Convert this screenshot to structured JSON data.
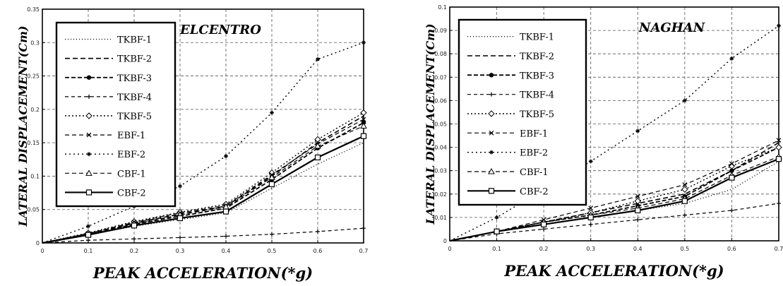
{
  "chart_data": [
    {
      "type": "line",
      "title": "ELCENTRO",
      "xlabel": "PEAK ACCELERATION(*g)",
      "ylabel": "LATERAL DISPLACEMENT(Cm)",
      "xlim": [
        0,
        0.7
      ],
      "ylim": [
        0,
        0.35
      ],
      "x_ticks": [
        "0",
        "0.1",
        "0.2",
        "0.3",
        "0.4",
        "0.5",
        "0.6",
        "0.7"
      ],
      "y_ticks": [
        "0",
        "0.05",
        "0.1",
        "0.15",
        "0.2",
        "0.25",
        "0.3",
        "0.35"
      ],
      "grid": true,
      "legend_position": "top-left",
      "x": [
        0,
        0.1,
        0.2,
        0.3,
        0.4,
        0.5,
        0.6,
        0.7
      ],
      "series": [
        {
          "name": "TKBF-1",
          "values": [
            0,
            0.012,
            0.025,
            0.035,
            0.045,
            0.082,
            0.118,
            0.15
          ]
        },
        {
          "name": "TKBF-2",
          "values": [
            0,
            0.014,
            0.03,
            0.043,
            0.055,
            0.1,
            0.15,
            0.19
          ]
        },
        {
          "name": "TKBF-3",
          "values": [
            0,
            0.013,
            0.028,
            0.04,
            0.052,
            0.095,
            0.142,
            0.18
          ]
        },
        {
          "name": "TKBF-4",
          "values": [
            0,
            0.004,
            0.006,
            0.008,
            0.01,
            0.013,
            0.017,
            0.022
          ]
        },
        {
          "name": "TKBF-5",
          "values": [
            0,
            0.015,
            0.032,
            0.046,
            0.058,
            0.105,
            0.155,
            0.195
          ]
        },
        {
          "name": "EBF-1",
          "values": [
            0,
            0.014,
            0.031,
            0.045,
            0.056,
            0.102,
            0.148,
            0.185
          ]
        },
        {
          "name": "EBF-2",
          "values": [
            0,
            0.025,
            0.055,
            0.085,
            0.13,
            0.195,
            0.275,
            0.3
          ]
        },
        {
          "name": "CBF-1",
          "values": [
            0,
            0.013,
            0.029,
            0.042,
            0.054,
            0.098,
            0.145,
            0.175
          ]
        },
        {
          "name": "CBF-2",
          "values": [
            0,
            0.012,
            0.026,
            0.037,
            0.047,
            0.088,
            0.128,
            0.16
          ]
        }
      ]
    },
    {
      "type": "line",
      "title": "NAGHAN",
      "xlabel": "PEAK ACCELERATION(*g)",
      "ylabel": "LATERAL DISPLACEMENT(Cm)",
      "xlim": [
        0,
        0.7
      ],
      "ylim": [
        0,
        0.1
      ],
      "x_ticks": [
        "0",
        "0.1",
        "0.2",
        "0.3",
        "0.4",
        "0.5",
        "0.6",
        "0.7"
      ],
      "y_ticks": [
        "0",
        "0.01",
        "0.02",
        "0.03",
        "0.04",
        "0.05",
        "0.06",
        "0.07",
        "0.08",
        "0.09",
        "0.1"
      ],
      "grid": true,
      "legend_position": "top-left",
      "x": [
        0,
        0.1,
        0.2,
        0.3,
        0.4,
        0.5,
        0.6,
        0.7
      ],
      "series": [
        {
          "name": "TKBF-1",
          "values": [
            0,
            0.004,
            0.007,
            0.01,
            0.013,
            0.016,
            0.022,
            0.034
          ]
        },
        {
          "name": "TKBF-2",
          "values": [
            0,
            0.004,
            0.008,
            0.012,
            0.016,
            0.02,
            0.03,
            0.042
          ]
        },
        {
          "name": "TKBF-3",
          "values": [
            0,
            0.004,
            0.008,
            0.011,
            0.015,
            0.019,
            0.03,
            0.04
          ]
        },
        {
          "name": "TKBF-4",
          "values": [
            0,
            0.003,
            0.005,
            0.007,
            0.009,
            0.011,
            0.013,
            0.016
          ]
        },
        {
          "name": "TKBF-5",
          "values": [
            0,
            0.004,
            0.008,
            0.012,
            0.017,
            0.022,
            0.032,
            0.04
          ]
        },
        {
          "name": "EBF-1",
          "values": [
            0,
            0.004,
            0.009,
            0.014,
            0.019,
            0.024,
            0.033,
            0.043
          ]
        },
        {
          "name": "EBF-2",
          "values": [
            0,
            0.01,
            0.022,
            0.034,
            0.047,
            0.06,
            0.078,
            0.092
          ]
        },
        {
          "name": "CBF-1",
          "values": [
            0,
            0.004,
            0.008,
            0.011,
            0.014,
            0.018,
            0.028,
            0.036
          ]
        },
        {
          "name": "CBF-2",
          "values": [
            0,
            0.004,
            0.007,
            0.01,
            0.013,
            0.017,
            0.027,
            0.035
          ]
        }
      ]
    }
  ]
}
